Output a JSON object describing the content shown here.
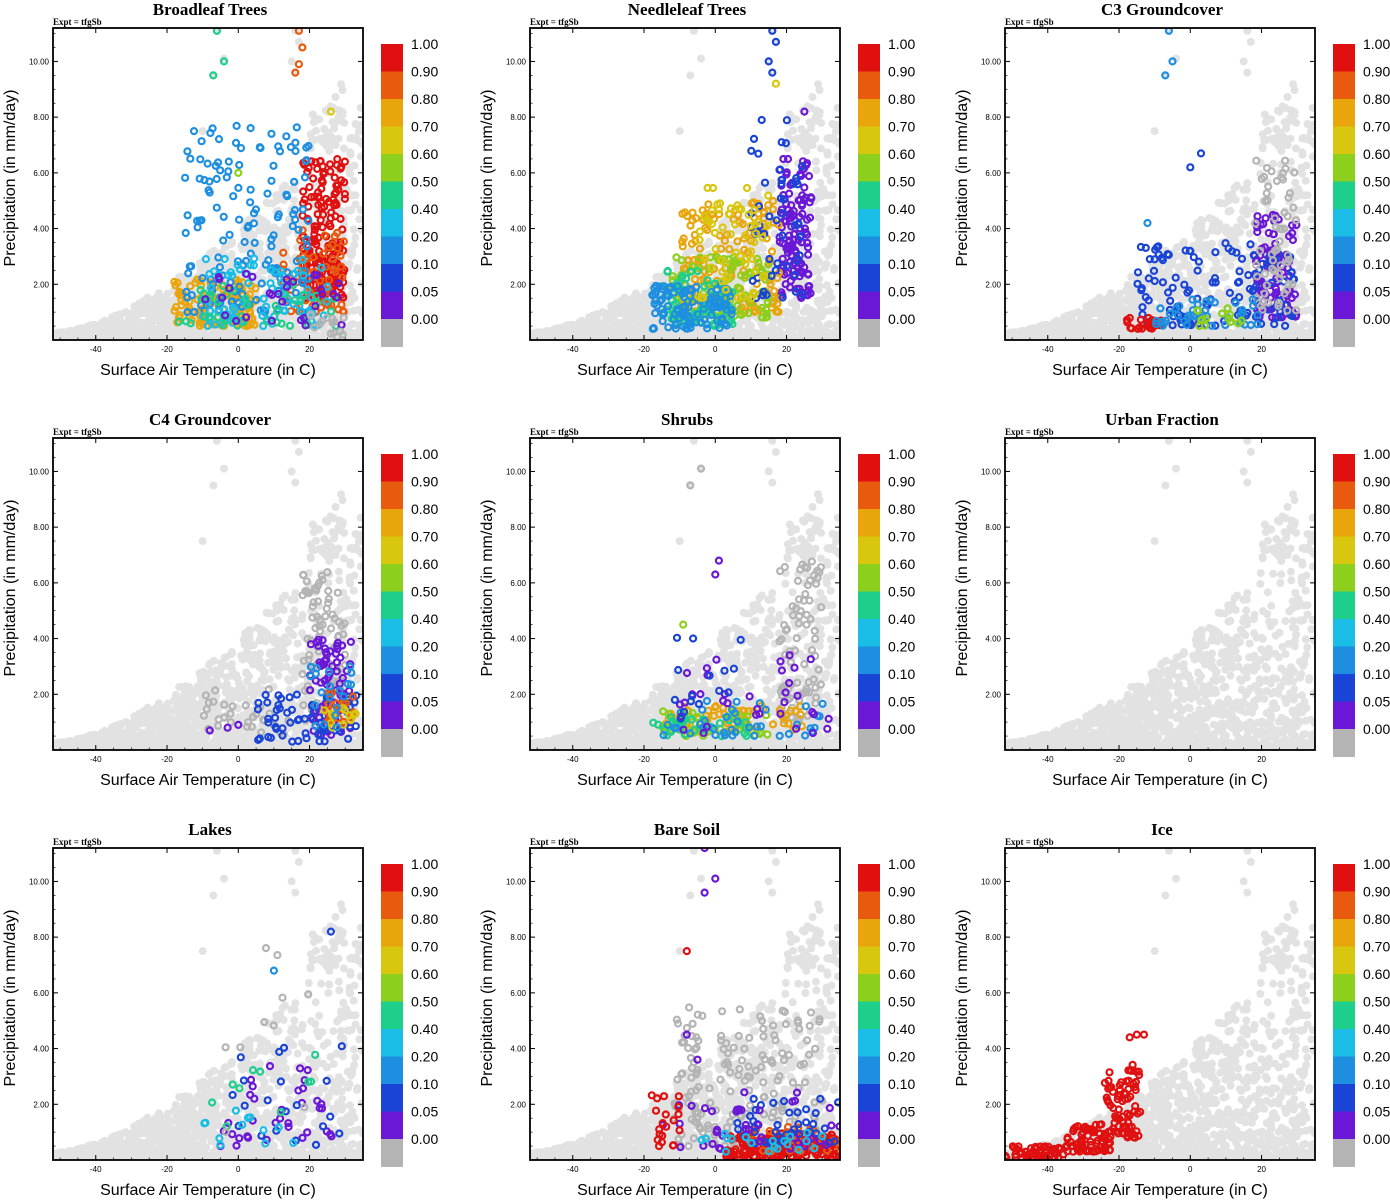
{
  "figure": {
    "experiment_label": "Expt = tfgSb"
  },
  "colorbar": {
    "labels": [
      "1.00",
      "0.90",
      "0.80",
      "0.70",
      "0.60",
      "0.50",
      "0.40",
      "0.20",
      "0.10",
      "0.05",
      "0.00"
    ],
    "colors": [
      "#e01010",
      "#e85a0e",
      "#e8a50c",
      "#d9c60f",
      "#8ccf1c",
      "#1ecf8c",
      "#19bde6",
      "#1e8fe0",
      "#1a44d6",
      "#6a18d6",
      "#b4b4b4"
    ]
  },
  "background_color": "#e2e2e2",
  "chart_data": [
    {
      "type": "scatter",
      "title": "Broadleaf Trees",
      "xlabel": "Surface Air Temperature (in C)",
      "ylabel": "Precipitation (in mm/day)",
      "xlim": [
        -52,
        35
      ],
      "ylim": [
        0,
        11.2
      ],
      "xticks": [
        -40,
        -20,
        0,
        20
      ],
      "yticks": [
        2,
        4,
        6,
        8,
        10
      ],
      "clusters": [
        {
          "color": "#e01010",
          "xr": [
            18,
            30
          ],
          "yr": [
            1.5,
            6.5
          ],
          "n": 180
        },
        {
          "color": "#e85a0e",
          "xr": [
            12,
            30
          ],
          "yr": [
            1.0,
            4.0
          ],
          "n": 60
        },
        {
          "color": "#e8a50c",
          "xr": [
            -18,
            5
          ],
          "yr": [
            0.5,
            2.2
          ],
          "n": 120
        },
        {
          "color": "#1e8fe0",
          "xr": [
            -15,
            20
          ],
          "yr": [
            1.0,
            7.8
          ],
          "n": 150
        },
        {
          "color": "#19bde6",
          "xr": [
            -10,
            25
          ],
          "yr": [
            0.5,
            3.0
          ],
          "n": 80
        },
        {
          "color": "#1ecf8c",
          "xr": [
            -18,
            30
          ],
          "yr": [
            0.5,
            2.0
          ],
          "n": 40
        },
        {
          "color": "#6a18d6",
          "xr": [
            -10,
            30
          ],
          "yr": [
            0.5,
            2.5
          ],
          "n": 30
        },
        {
          "color": "#b4b4b4",
          "xr": [
            20,
            30
          ],
          "yr": [
            0.1,
            1.0
          ],
          "n": 15
        }
      ],
      "points": [
        {
          "x": -7,
          "y": 9.5,
          "c": "#1ecf8c"
        },
        {
          "x": -4,
          "y": 10.0,
          "c": "#1ecf8c"
        },
        {
          "x": -6,
          "y": 11.1,
          "c": "#1ecf8c"
        },
        {
          "x": 17,
          "y": 11.1,
          "c": "#e85a0e"
        },
        {
          "x": 18,
          "y": 10.5,
          "c": "#e85a0e"
        },
        {
          "x": 17,
          "y": 9.9,
          "c": "#e85a0e"
        },
        {
          "x": 16,
          "y": 9.6,
          "c": "#e85a0e"
        },
        {
          "x": 26,
          "y": 8.2,
          "c": "#d9c60f"
        },
        {
          "x": 0,
          "y": 6.0,
          "c": "#8ccf1c"
        }
      ]
    },
    {
      "type": "scatter",
      "title": "Needleleaf Trees",
      "xlabel": "Surface Air Temperature (in C)",
      "ylabel": "Precipitation (in mm/day)",
      "xlim": [
        -52,
        35
      ],
      "ylim": [
        0,
        11.2
      ],
      "xticks": [
        -40,
        -20,
        0,
        20
      ],
      "yticks": [
        2,
        4,
        6,
        8,
        10
      ],
      "clusters": [
        {
          "color": "#6a18d6",
          "xr": [
            18,
            27
          ],
          "yr": [
            1.5,
            6.5
          ],
          "n": 120
        },
        {
          "color": "#e8a50c",
          "xr": [
            -10,
            18
          ],
          "yr": [
            1.0,
            5.0
          ],
          "n": 160
        },
        {
          "color": "#8ccf1c",
          "xr": [
            -12,
            15
          ],
          "yr": [
            0.8,
            3.0
          ],
          "n": 120
        },
        {
          "color": "#1ecf8c",
          "xr": [
            -15,
            5
          ],
          "yr": [
            0.5,
            2.5
          ],
          "n": 80
        },
        {
          "color": "#1e8fe0",
          "xr": [
            -18,
            5
          ],
          "yr": [
            0.4,
            2.0
          ],
          "n": 110
        },
        {
          "color": "#1a44d6",
          "xr": [
            10,
            25
          ],
          "yr": [
            1.5,
            8.0
          ],
          "n": 50
        },
        {
          "color": "#d9c60f",
          "xr": [
            -5,
            15
          ],
          "yr": [
            1.5,
            5.5
          ],
          "n": 60
        }
      ],
      "points": [
        {
          "x": 16,
          "y": 11.1,
          "c": "#1a44d6"
        },
        {
          "x": 17,
          "y": 10.7,
          "c": "#1a44d6"
        },
        {
          "x": 15,
          "y": 10.0,
          "c": "#1a44d6"
        },
        {
          "x": 16,
          "y": 9.6,
          "c": "#1a44d6"
        },
        {
          "x": 17,
          "y": 9.2,
          "c": "#d9c60f"
        },
        {
          "x": 25,
          "y": 8.2,
          "c": "#6a18d6"
        }
      ]
    },
    {
      "type": "scatter",
      "title": "C3 Groundcover",
      "xlabel": "Surface Air Temperature (in C)",
      "ylabel": "Precipitation (in mm/day)",
      "xlim": [
        -52,
        35
      ],
      "ylim": [
        0,
        11.2
      ],
      "xticks": [
        -40,
        -20,
        0,
        20
      ],
      "yticks": [
        2,
        4,
        6,
        8,
        10
      ],
      "clusters": [
        {
          "color": "#6a18d6",
          "xr": [
            18,
            30
          ],
          "yr": [
            0.8,
            4.5
          ],
          "n": 110
        },
        {
          "color": "#1a44d6",
          "xr": [
            -15,
            30
          ],
          "yr": [
            0.5,
            3.5
          ],
          "n": 120
        },
        {
          "color": "#b4b4b4",
          "xr": [
            18,
            30
          ],
          "yr": [
            1.0,
            6.5
          ],
          "n": 60
        },
        {
          "color": "#e01010",
          "xr": [
            -18,
            -8
          ],
          "yr": [
            0.4,
            0.8
          ],
          "n": 25
        },
        {
          "color": "#1e8fe0",
          "xr": [
            -10,
            20
          ],
          "yr": [
            0.5,
            1.5
          ],
          "n": 40
        },
        {
          "color": "#8ccf1c",
          "xr": [
            0,
            15
          ],
          "yr": [
            0.5,
            1.2
          ],
          "n": 15
        }
      ],
      "points": [
        {
          "x": -7,
          "y": 9.5,
          "c": "#1e8fe0"
        },
        {
          "x": -5,
          "y": 10.0,
          "c": "#1e8fe0"
        },
        {
          "x": -6,
          "y": 11.1,
          "c": "#1e8fe0"
        },
        {
          "x": 0,
          "y": 6.2,
          "c": "#1a44d6"
        },
        {
          "x": 3,
          "y": 6.7,
          "c": "#1a44d6"
        },
        {
          "x": -12,
          "y": 4.2,
          "c": "#1e8fe0"
        }
      ]
    },
    {
      "type": "scatter",
      "title": "C4 Groundcover",
      "xlabel": "Surface Air Temperature (in C)",
      "ylabel": "Precipitation (in mm/day)",
      "xlim": [
        -52,
        35
      ],
      "ylim": [
        0,
        11.2
      ],
      "xticks": [
        -40,
        -20,
        0,
        20
      ],
      "yticks": [
        2,
        4,
        6,
        8,
        10
      ],
      "clusters": [
        {
          "color": "#b4b4b4",
          "xr": [
            18,
            30
          ],
          "yr": [
            1.0,
            6.5
          ],
          "n": 90
        },
        {
          "color": "#b4b4b4",
          "xr": [
            -10,
            15
          ],
          "yr": [
            0.5,
            2.2
          ],
          "n": 30
        },
        {
          "color": "#6a18d6",
          "xr": [
            20,
            32
          ],
          "yr": [
            0.5,
            4.0
          ],
          "n": 70
        },
        {
          "color": "#1a44d6",
          "xr": [
            5,
            34
          ],
          "yr": [
            0.3,
            2.0
          ],
          "n": 60
        },
        {
          "color": "#e85a0e",
          "xr": [
            25,
            33
          ],
          "yr": [
            1.0,
            2.2
          ],
          "n": 20
        },
        {
          "color": "#d9c60f",
          "xr": [
            24,
            33
          ],
          "yr": [
            0.8,
            1.6
          ],
          "n": 12
        },
        {
          "color": "#1e8fe0",
          "xr": [
            20,
            32
          ],
          "yr": [
            0.8,
            3.0
          ],
          "n": 20
        }
      ],
      "points": [
        {
          "x": -8,
          "y": 0.7,
          "c": "#6a18d6"
        },
        {
          "x": -3,
          "y": 0.8,
          "c": "#6a18d6"
        },
        {
          "x": 0,
          "y": 0.9,
          "c": "#6a18d6"
        }
      ]
    },
    {
      "type": "scatter",
      "title": "Shrubs",
      "xlabel": "Surface Air Temperature (in C)",
      "ylabel": "Precipitation (in mm/day)",
      "xlim": [
        -52,
        35
      ],
      "ylim": [
        0,
        11.2
      ],
      "xticks": [
        -40,
        -20,
        0,
        20
      ],
      "yticks": [
        2,
        4,
        6,
        8,
        10
      ],
      "clusters": [
        {
          "color": "#b4b4b4",
          "xr": [
            18,
            30
          ],
          "yr": [
            1.0,
            6.8
          ],
          "n": 80
        },
        {
          "color": "#e8a50c",
          "xr": [
            -15,
            25
          ],
          "yr": [
            0.6,
            1.6
          ],
          "n": 70
        },
        {
          "color": "#8ccf1c",
          "xr": [
            -15,
            15
          ],
          "yr": [
            0.5,
            1.4
          ],
          "n": 40
        },
        {
          "color": "#1ecf8c",
          "xr": [
            -18,
            10
          ],
          "yr": [
            0.5,
            1.2
          ],
          "n": 30
        },
        {
          "color": "#1e8fe0",
          "xr": [
            -15,
            32
          ],
          "yr": [
            0.5,
            2.0
          ],
          "n": 40
        },
        {
          "color": "#6a18d6",
          "xr": [
            -10,
            32
          ],
          "yr": [
            0.6,
            3.5
          ],
          "n": 35
        },
        {
          "color": "#1a44d6",
          "xr": [
            -12,
            10
          ],
          "yr": [
            1.0,
            4.5
          ],
          "n": 15
        }
      ],
      "points": [
        {
          "x": -7,
          "y": 9.5,
          "c": "#b4b4b4"
        },
        {
          "x": -4,
          "y": 10.1,
          "c": "#b4b4b4"
        },
        {
          "x": 0,
          "y": 6.3,
          "c": "#6a18d6"
        },
        {
          "x": 1,
          "y": 6.8,
          "c": "#6a18d6"
        },
        {
          "x": -9,
          "y": 4.5,
          "c": "#8ccf1c"
        }
      ]
    },
    {
      "type": "scatter",
      "title": "Urban Fraction",
      "xlabel": "Surface Air Temperature (in C)",
      "ylabel": "Precipitation (in mm/day)",
      "xlim": [
        -52,
        35
      ],
      "ylim": [
        0,
        11.2
      ],
      "xticks": [
        -40,
        -20,
        0,
        20
      ],
      "yticks": [
        2,
        4,
        6,
        8,
        10
      ],
      "clusters": [],
      "points": []
    },
    {
      "type": "scatter",
      "title": "Lakes",
      "xlabel": "Surface Air Temperature (in C)",
      "ylabel": "Precipitation (in mm/day)",
      "xlim": [
        -52,
        35
      ],
      "ylim": [
        0,
        11.2
      ],
      "xticks": [
        -40,
        -20,
        0,
        20
      ],
      "yticks": [
        2,
        4,
        6,
        8,
        10
      ],
      "clusters": [
        {
          "color": "#6a18d6",
          "xr": [
            -5,
            28
          ],
          "yr": [
            0.5,
            3.5
          ],
          "n": 35
        },
        {
          "color": "#1a44d6",
          "xr": [
            -3,
            30
          ],
          "yr": [
            0.5,
            4.5
          ],
          "n": 20
        },
        {
          "color": "#19bde6",
          "xr": [
            -10,
            20
          ],
          "yr": [
            0.5,
            2.0
          ],
          "n": 12
        },
        {
          "color": "#1ecf8c",
          "xr": [
            -15,
            33
          ],
          "yr": [
            0.6,
            3.8
          ],
          "n": 10
        },
        {
          "color": "#b4b4b4",
          "xr": [
            -5,
            20
          ],
          "yr": [
            1.0,
            7.8
          ],
          "n": 10
        }
      ],
      "points": [
        {
          "x": 26,
          "y": 8.2,
          "c": "#1a44d6"
        },
        {
          "x": 10,
          "y": 6.8,
          "c": "#1e8fe0"
        }
      ]
    },
    {
      "type": "scatter",
      "title": "Bare Soil",
      "xlabel": "Surface Air Temperature (in C)",
      "ylabel": "Precipitation (in mm/day)",
      "xlim": [
        -52,
        35
      ],
      "ylim": [
        0,
        11.2
      ],
      "xticks": [
        -40,
        -20,
        0,
        20
      ],
      "yticks": [
        2,
        4,
        6,
        8,
        10
      ],
      "clusters": [
        {
          "color": "#b4b4b4",
          "xr": [
            -12,
            30
          ],
          "yr": [
            0.5,
            5.5
          ],
          "n": 180
        },
        {
          "color": "#e01010",
          "xr": [
            3,
            35
          ],
          "yr": [
            0.1,
            1.0
          ],
          "n": 200
        },
        {
          "color": "#e85a0e",
          "xr": [
            10,
            35
          ],
          "yr": [
            0.3,
            1.2
          ],
          "n": 30
        },
        {
          "color": "#1a44d6",
          "xr": [
            5,
            35
          ],
          "yr": [
            0.6,
            2.2
          ],
          "n": 40
        },
        {
          "color": "#6a18d6",
          "xr": [
            -15,
            35
          ],
          "yr": [
            0.4,
            2.5
          ],
          "n": 40
        },
        {
          "color": "#19bde6",
          "xr": [
            -5,
            30
          ],
          "yr": [
            0.3,
            1.0
          ],
          "n": 20
        },
        {
          "color": "#e01010",
          "xr": [
            -18,
            -10
          ],
          "yr": [
            0.5,
            2.5
          ],
          "n": 20
        }
      ],
      "points": [
        {
          "x": -3,
          "y": 11.2,
          "c": "#6a18d6"
        },
        {
          "x": 0,
          "y": 10.1,
          "c": "#6a18d6"
        },
        {
          "x": -3,
          "y": 9.6,
          "c": "#6a18d6"
        },
        {
          "x": -8,
          "y": 7.5,
          "c": "#e01010"
        },
        {
          "x": -5,
          "y": 3.6,
          "c": "#6a18d6"
        },
        {
          "x": -8,
          "y": 4.5,
          "c": "#6a18d6"
        }
      ]
    },
    {
      "type": "scatter",
      "title": "Ice",
      "xlabel": "Surface Air Temperature (in C)",
      "ylabel": "Precipitation (in mm/day)",
      "xlim": [
        -52,
        35
      ],
      "ylim": [
        0,
        11.2
      ],
      "xticks": [
        -40,
        -20,
        0,
        20
      ],
      "yticks": [
        2,
        4,
        6,
        8,
        10
      ],
      "clusters": [
        {
          "color": "#e01010",
          "xr": [
            -52,
            -35
          ],
          "yr": [
            0.05,
            0.5
          ],
          "n": 60
        },
        {
          "color": "#e01010",
          "xr": [
            -35,
            -22
          ],
          "yr": [
            0.3,
            1.3
          ],
          "n": 70
        },
        {
          "color": "#e01010",
          "xr": [
            -24,
            -14
          ],
          "yr": [
            0.8,
            3.5
          ],
          "n": 80
        }
      ],
      "points": [
        {
          "x": -17,
          "y": 4.4,
          "c": "#e01010"
        },
        {
          "x": -15,
          "y": 4.5,
          "c": "#e01010"
        },
        {
          "x": -13,
          "y": 4.5,
          "c": "#e01010"
        }
      ]
    }
  ]
}
